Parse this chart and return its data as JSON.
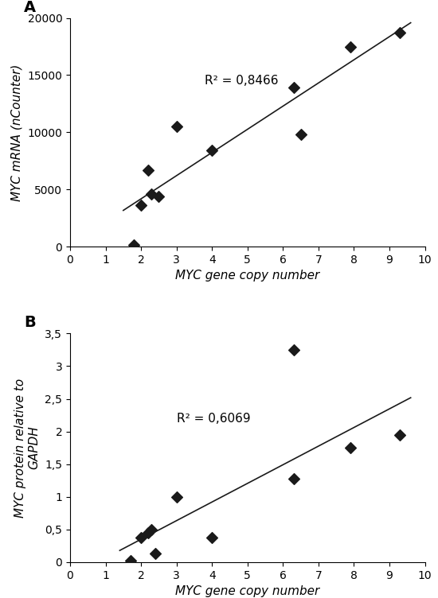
{
  "panel_A": {
    "x": [
      1.8,
      2.0,
      2.2,
      2.3,
      2.5,
      3.0,
      4.0,
      6.3,
      6.5,
      7.9,
      9.3
    ],
    "y": [
      150,
      3600,
      6700,
      4600,
      4400,
      10500,
      8400,
      13900,
      9800,
      17500,
      18700
    ],
    "r2_text": "R² = 0,8466",
    "r2_x": 3.8,
    "r2_y": 14500,
    "xlabel": "MYC gene copy number",
    "ylabel": "MYC mRNA (nCounter)",
    "xlim": [
      0,
      10
    ],
    "ylim": [
      0,
      20000
    ],
    "xticks": [
      0,
      1,
      2,
      3,
      4,
      5,
      6,
      7,
      8,
      9,
      10
    ],
    "yticks": [
      0,
      5000,
      10000,
      15000,
      20000
    ],
    "panel_label": "A"
  },
  "panel_B": {
    "x": [
      1.7,
      2.0,
      2.2,
      2.3,
      2.4,
      3.0,
      4.0,
      6.3,
      6.3,
      7.9,
      9.3
    ],
    "y": [
      0.02,
      0.38,
      0.45,
      0.5,
      0.13,
      1.0,
      0.38,
      3.25,
      1.28,
      1.75,
      1.95
    ],
    "r2_text": "R² = 0,6069",
    "r2_x": 3.0,
    "r2_y": 2.2,
    "xlabel": "MYC gene copy number",
    "ylabel": "MYC protein relative to\nGAPDH",
    "xlim": [
      0,
      10
    ],
    "ylim": [
      0,
      3.5
    ],
    "xticks": [
      0,
      1,
      2,
      3,
      4,
      5,
      6,
      7,
      8,
      9,
      10
    ],
    "yticks": [
      0,
      0.5,
      1.0,
      1.5,
      2.0,
      2.5,
      3.0,
      3.5
    ],
    "ytick_labels": [
      "0",
      "0,5",
      "1",
      "1,5",
      "2",
      "2,5",
      "3",
      "3,5"
    ],
    "panel_label": "B"
  },
  "marker": "D",
  "marker_size": 7,
  "marker_color": "#1a1a1a",
  "line_color": "#1a1a1a",
  "line_width": 1.2,
  "bg_color": "#ffffff",
  "font_size_label": 11,
  "font_size_tick": 10,
  "font_size_panel": 14,
  "font_size_r2": 11
}
